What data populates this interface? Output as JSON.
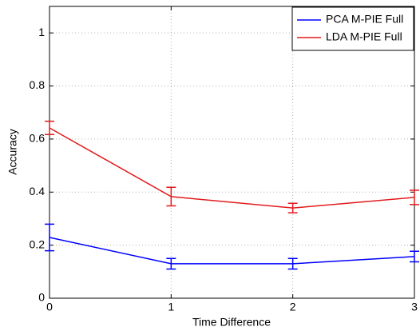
{
  "chart_data": {
    "type": "line",
    "x_label": "Time Difference",
    "y_label": "Accuracy",
    "x": [
      0,
      1,
      2,
      3
    ],
    "series": [
      {
        "name": "PCA M-PIE Full",
        "color": "#0000ff",
        "values": [
          0.229,
          0.13,
          0.13,
          0.157
        ],
        "errors": [
          0.05,
          0.02,
          0.02,
          0.02
        ]
      },
      {
        "name": "LDA M-PIE Full",
        "color": "#e31a1c",
        "values": [
          0.642,
          0.383,
          0.34,
          0.38
        ],
        "errors": [
          0.025,
          0.035,
          0.018,
          0.027
        ]
      }
    ],
    "xlim": [
      0,
      3
    ],
    "xticks": [
      0,
      1,
      2,
      3
    ],
    "ylim": [
      0,
      1.1
    ],
    "yticks": [
      0,
      0.2,
      0.4,
      0.6,
      0.8,
      1
    ],
    "grid": true,
    "legend": "upper-right"
  }
}
